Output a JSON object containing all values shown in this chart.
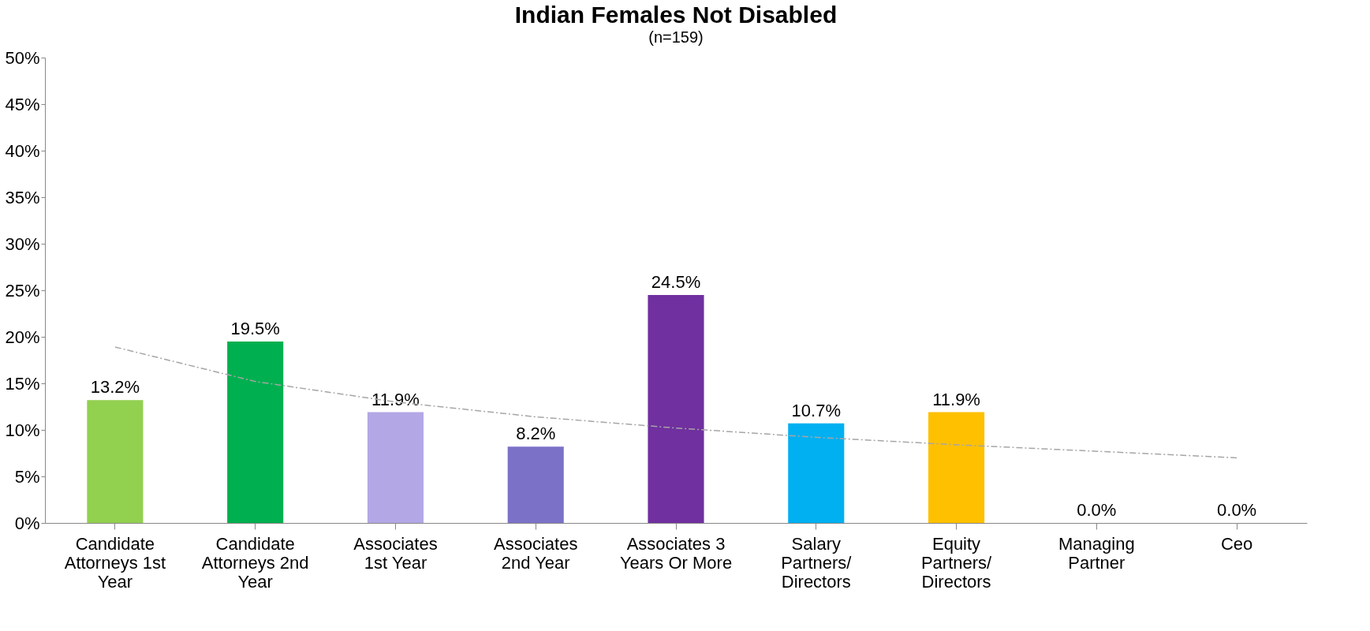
{
  "chart_data": {
    "type": "bar",
    "title": "Indian Females Not Disabled",
    "subtitle": "(n=159)",
    "categories": [
      "Candidate Attorneys 1st Year",
      "Candidate Attorneys 2nd Year",
      "Associates 1st Year",
      "Associates 2nd Year",
      "Associates 3 Years Or More",
      "Salary Partners/ Directors",
      "Equity Partners/ Directors",
      "Managing Partner",
      "Ceo"
    ],
    "series": [
      {
        "values": [
          13.2,
          19.5,
          11.9,
          8.2,
          24.5,
          10.7,
          11.9,
          0.0,
          0.0
        ],
        "colors": [
          "#92d050",
          "#00b050",
          "#b4a7e5",
          "#7b72c8",
          "#7030a0",
          "#00b0f0",
          "#ffc000",
          "#a0a0a0",
          "#a0a0a0"
        ],
        "value_labels": [
          "13.2%",
          "19.5%",
          "11.9%",
          "8.2%",
          "24.5%",
          "10.7%",
          "11.9%",
          "0.0%",
          "0.0%"
        ]
      },
      {
        "type": "line",
        "color": "#a6a6a6",
        "line_style": "dashed",
        "marker": "none",
        "values": [
          18.9,
          15.2,
          13.0,
          11.4,
          10.2,
          9.2,
          8.4,
          7.7,
          7.0
        ]
      }
    ],
    "ylim": [
      0,
      50
    ],
    "yticks": [
      {
        "value": 0,
        "label": "0%"
      },
      {
        "value": 5,
        "label": "5%"
      },
      {
        "value": 10,
        "label": "10%"
      },
      {
        "value": 15,
        "label": "15%"
      },
      {
        "value": 20,
        "label": "20%"
      },
      {
        "value": 25,
        "label": "25%"
      },
      {
        "value": 30,
        "label": "30%"
      },
      {
        "value": 35,
        "label": "35%"
      },
      {
        "value": 40,
        "label": "40%"
      },
      {
        "value": 45,
        "label": "45%"
      },
      {
        "value": 50,
        "label": "50%"
      }
    ],
    "grid": false
  }
}
